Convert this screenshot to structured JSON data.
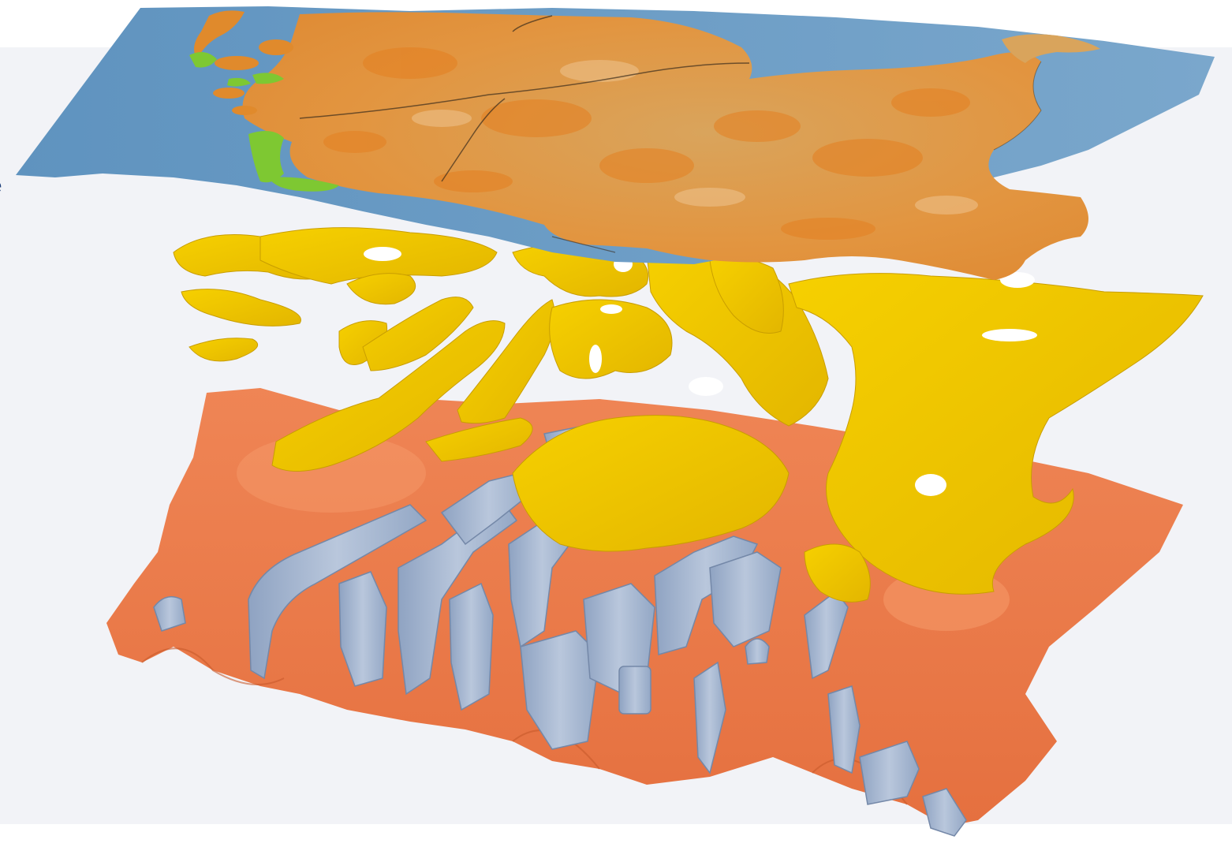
{
  "figure": {
    "edge_text": "e",
    "colors": {
      "background": "#f2f3f7",
      "sea": "#6a9cc4",
      "land": "#d8a25a",
      "land_dark": "#e08a2c",
      "wetland": "#7ec832",
      "aquifer_upper": "#f0c800",
      "aquifer_lower": "#ee7f4f",
      "salt_domes": "#a7b8d2"
    },
    "layers": [
      "surface-map-layer",
      "upper-geological-surface",
      "lower-geological-surface",
      "salt-structures"
    ]
  }
}
